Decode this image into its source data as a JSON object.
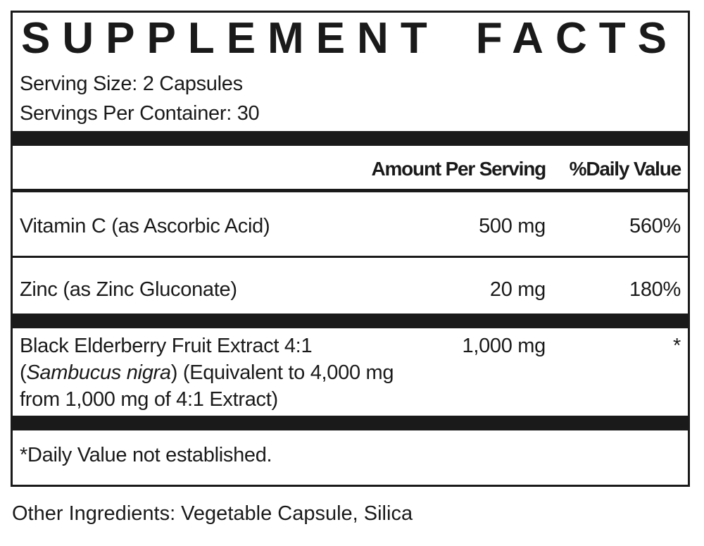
{
  "title_words": [
    "SUPPLEMENT",
    "FACTS"
  ],
  "serving_size": "Serving Size: 2 Capsules",
  "servings_per_container": "Servings Per Container: 30",
  "header": {
    "amount": "Amount Per Serving",
    "daily_value": "%Daily Value"
  },
  "rows": [
    {
      "name": "Vitamin C (as Ascorbic Acid)",
      "amount": "500 mg",
      "dv": "560%"
    },
    {
      "name": "Zinc (as Zinc Gluconate)",
      "amount": "20 mg",
      "dv": "180%"
    },
    {
      "name_line1": "Black Elderberry Fruit Extract 4:1",
      "name_open": "(",
      "name_italic": "Sambucus nigra",
      "name_line2_rest": ") (Equivalent to 4,000 mg",
      "name_line3": "from 1,000 mg of 4:1 Extract)",
      "amount": "1,000 mg",
      "dv": "*"
    }
  ],
  "footnote": "*Daily Value not established.",
  "other_ingredients": "Other Ingredients: Vegetable Capsule, Silica"
}
